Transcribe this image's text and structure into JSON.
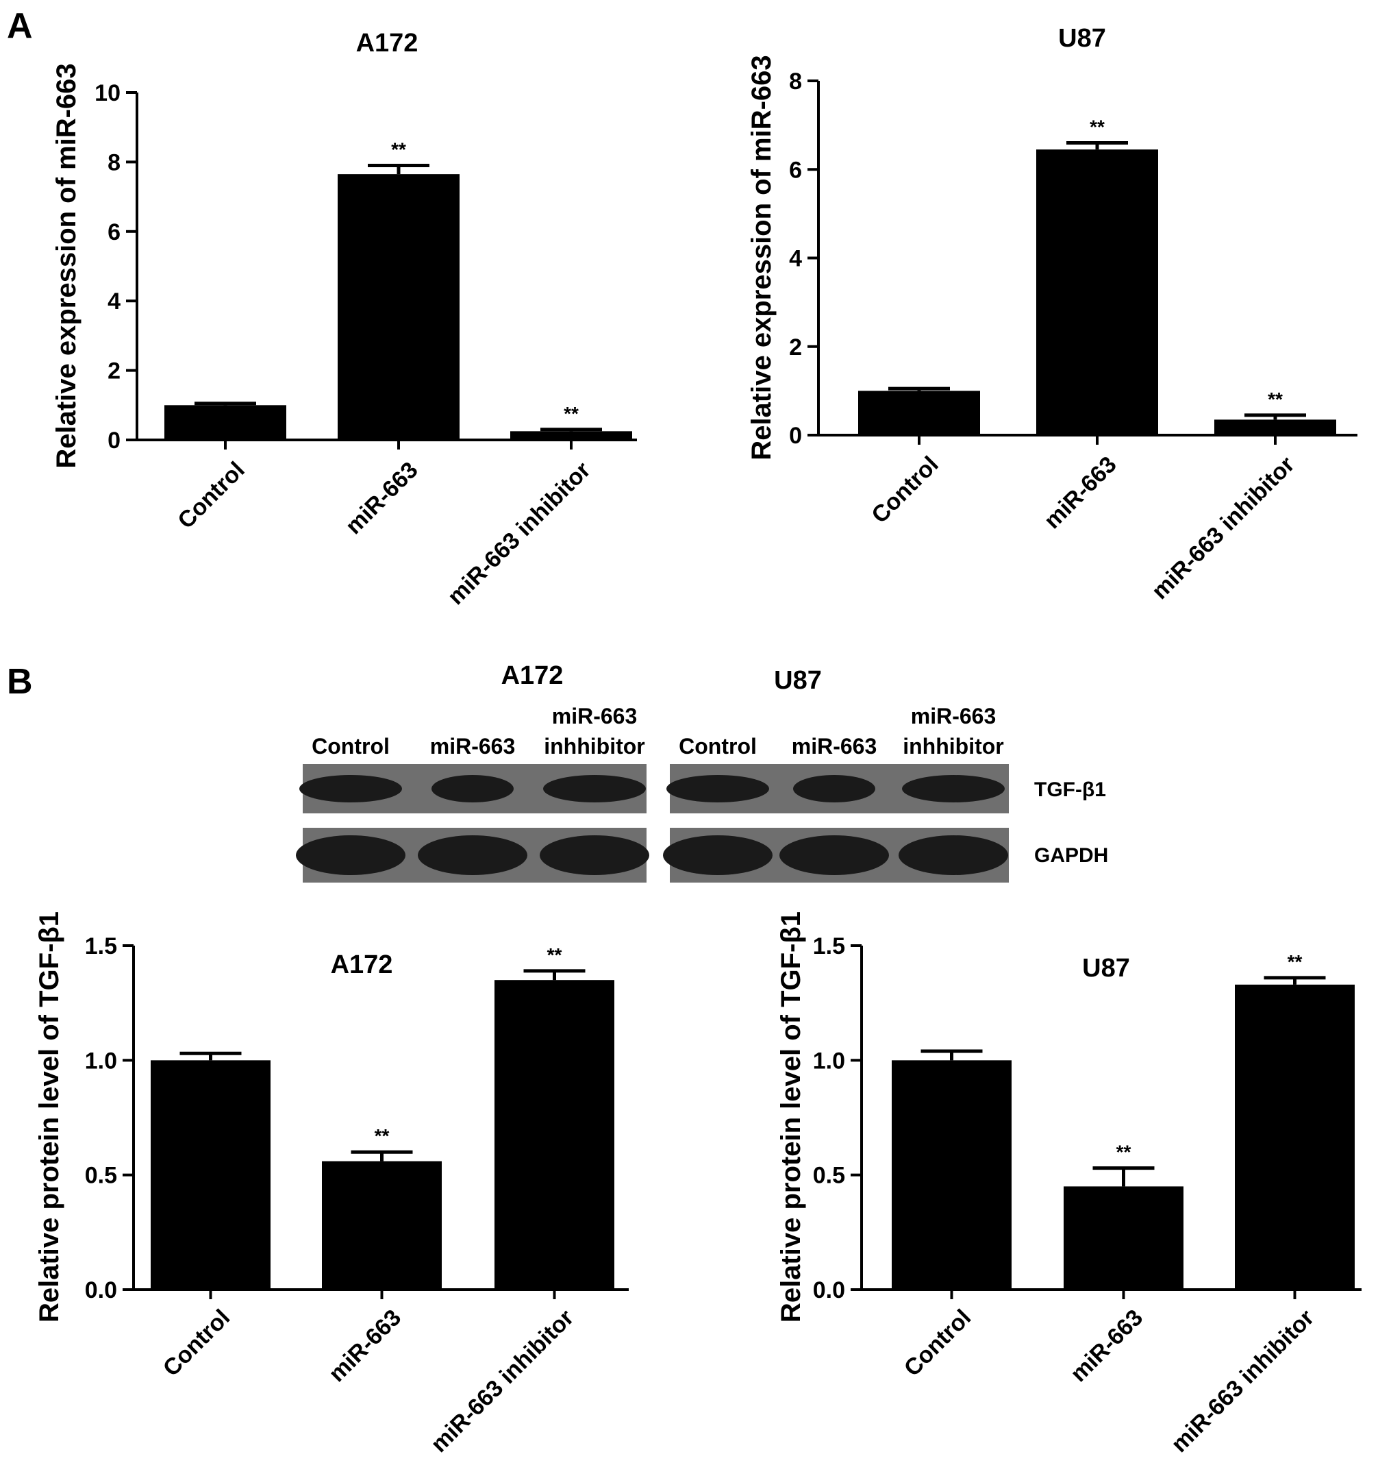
{
  "panels": {
    "A": "A",
    "B": "B"
  },
  "colors": {
    "bar": "#000000",
    "axis": "#000000",
    "blot_bg": "#6f6f6f",
    "band": "#1a1a1a"
  },
  "western_blot": {
    "groups": [
      {
        "title": "A172",
        "lanes": [
          {
            "line1": "",
            "line2": "Control"
          },
          {
            "line1": "",
            "line2": "miR-663"
          },
          {
            "line1": "miR-663",
            "line2": "inhhibitor"
          }
        ]
      },
      {
        "title": "U87",
        "lanes": [
          {
            "line1": "",
            "line2": "Control"
          },
          {
            "line1": "",
            "line2": "miR-663"
          },
          {
            "line1": "miR-663",
            "line2": "inhhibitor"
          }
        ]
      }
    ],
    "proteins": [
      "TGF-β1",
      "GAPDH"
    ]
  },
  "chart_data": [
    {
      "type": "bar",
      "title": "A172",
      "ylabel": "Relative expression of miR-663",
      "categories": [
        "Control",
        "miR-663",
        "miR-663 inhibitor"
      ],
      "values": [
        1.0,
        7.65,
        0.25
      ],
      "errors": [
        0.05,
        0.25,
        0.05
      ],
      "annotations": [
        "",
        "**",
        "**"
      ],
      "ylim": [
        0,
        10
      ],
      "yticks": [
        0,
        2,
        4,
        6,
        8,
        10
      ],
      "ytick_labels": [
        "0",
        "2",
        "4",
        "6",
        "8",
        "10"
      ]
    },
    {
      "type": "bar",
      "title": "U87",
      "ylabel": "Relative expression of miR-663",
      "categories": [
        "Control",
        "miR-663",
        "miR-663 inhibitor"
      ],
      "values": [
        1.0,
        6.45,
        0.35
      ],
      "errors": [
        0.05,
        0.15,
        0.1
      ],
      "annotations": [
        "",
        "**",
        "**"
      ],
      "ylim": [
        0,
        8
      ],
      "yticks": [
        0,
        2,
        4,
        6,
        8
      ],
      "ytick_labels": [
        "0",
        "2",
        "4",
        "6",
        "8"
      ]
    },
    {
      "type": "bar",
      "title": "A172",
      "ylabel": "Relative protein level of TGF-β1",
      "categories": [
        "Control",
        "miR-663",
        "miR-663 inhibitor"
      ],
      "values": [
        1.0,
        0.56,
        1.35
      ],
      "errors": [
        0.03,
        0.04,
        0.04
      ],
      "annotations": [
        "",
        "**",
        "**"
      ],
      "ylim": [
        0,
        1.5
      ],
      "yticks": [
        0,
        0.5,
        1.0,
        1.5
      ],
      "ytick_labels": [
        "0.0",
        "0.5",
        "1.0",
        "1.5"
      ]
    },
    {
      "type": "bar",
      "title": "U87",
      "ylabel": "Relative protein level of TGF-β1",
      "categories": [
        "Control",
        "miR-663",
        "miR-663 inhibitor"
      ],
      "values": [
        1.0,
        0.45,
        1.33
      ],
      "errors": [
        0.04,
        0.08,
        0.03
      ],
      "annotations": [
        "",
        "**",
        "**"
      ],
      "ylim": [
        0,
        1.5
      ],
      "yticks": [
        0,
        0.5,
        1.0,
        1.5
      ],
      "ytick_labels": [
        "0.0",
        "0.5",
        "1.0",
        "1.5"
      ]
    }
  ]
}
